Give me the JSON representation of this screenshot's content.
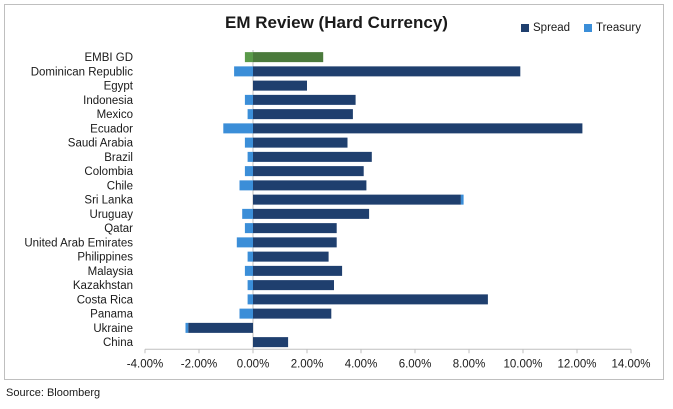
{
  "chart_data": {
    "type": "bar",
    "orientation": "horizontal",
    "stacked": true,
    "title": "EM Review (Hard Currency)",
    "categories": [
      "EMBI GD",
      "Dominican Republic",
      "Egypt",
      "Indonesia",
      "Mexico",
      "Ecuador",
      "Saudi Arabia",
      "Brazil",
      "Colombia",
      "Chile",
      "Sri Lanka",
      "Uruguay",
      "Qatar",
      "United Arab Emirates",
      "Philippines",
      "Malaysia",
      "Kazakhstan",
      "Costa Rica",
      "Panama",
      "Ukraine",
      "China"
    ],
    "series": [
      {
        "name": "Spread",
        "color": "#1f3f6e",
        "values": [
          2.6,
          9.9,
          2.0,
          3.8,
          3.7,
          12.2,
          3.5,
          4.4,
          4.1,
          4.2,
          7.7,
          4.3,
          3.1,
          3.1,
          2.8,
          3.3,
          3.0,
          8.7,
          2.9,
          -2.4,
          1.3
        ]
      },
      {
        "name": "Treasury",
        "color": "#3b8ed8",
        "values": [
          -0.3,
          -0.7,
          0.0,
          -0.3,
          -0.2,
          -1.1,
          -0.3,
          -0.2,
          -0.3,
          -0.5,
          0.1,
          -0.4,
          -0.3,
          -0.6,
          -0.2,
          -0.3,
          -0.2,
          -0.2,
          -0.5,
          -0.1,
          0.0
        ]
      }
    ],
    "highlight": {
      "category": "EMBI GD",
      "color": "#4b7a3c",
      "treasury_color": "#5a9a4a"
    },
    "xlim": [
      -4,
      14
    ],
    "xticks": [
      "-4.00%",
      "-2.00%",
      "0.00%",
      "2.00%",
      "4.00%",
      "6.00%",
      "8.00%",
      "10.00%",
      "12.00%",
      "14.00%"
    ],
    "legend_position": "top-right",
    "grid": false
  },
  "source": "Source: Bloomberg"
}
